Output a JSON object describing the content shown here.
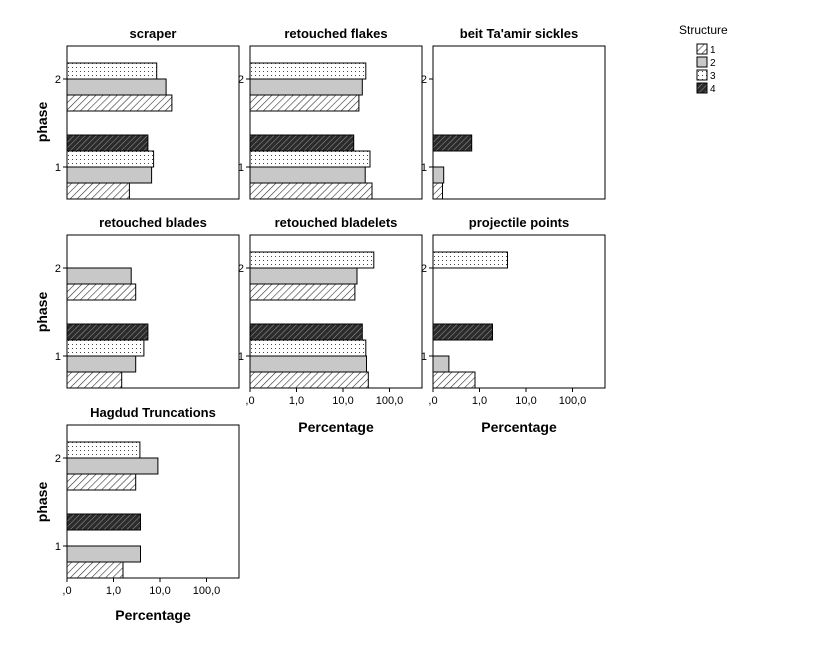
{
  "chart_data": {
    "type": "bar",
    "orientation": "horizontal",
    "x_scale": "log",
    "xlim": [
      0.1,
      500
    ],
    "x_ticks": [
      ",0",
      "1,0",
      "10,0",
      "100,0"
    ],
    "x_tick_values": [
      0.1,
      1,
      10,
      100
    ],
    "xlabel": "Percentage",
    "ylabel": "phase",
    "y_categories": [
      "1",
      "2"
    ],
    "legend": {
      "title": "Structure",
      "position": "top-right",
      "entries": [
        {
          "label": "1",
          "fill": "#ffffff",
          "pattern": "hatch-diagonal"
        },
        {
          "label": "2",
          "fill": "#c8c8c8",
          "pattern": "solid"
        },
        {
          "label": "3",
          "fill": "#ffffff",
          "pattern": "dots"
        },
        {
          "label": "4",
          "fill": "#595959",
          "pattern": "hatch-dense"
        }
      ]
    },
    "panels": [
      {
        "title": "scraper",
        "phases": [
          {
            "phase": "1",
            "values": {
              "1": 2.2,
              "2": 6.6,
              "3": 7.3,
              "4": 5.5
            }
          },
          {
            "phase": "2",
            "values": {
              "1": 18,
              "2": 13.5,
              "3": 8.5,
              "4": null
            }
          }
        ]
      },
      {
        "title": "retouched flakes",
        "phases": [
          {
            "phase": "1",
            "values": {
              "1": 42,
              "2": 30,
              "3": 38,
              "4": 17
            }
          },
          {
            "phase": "2",
            "values": {
              "1": 22,
              "2": 26,
              "3": 31,
              "4": null
            }
          }
        ]
      },
      {
        "title": "beit Ta'amir sickles",
        "phases": [
          {
            "phase": "1",
            "values": {
              "1": 0.16,
              "2": 0.17,
              "3": null,
              "4": 0.68
            }
          },
          {
            "phase": "2",
            "values": {
              "1": null,
              "2": null,
              "3": null,
              "4": null
            }
          }
        ]
      },
      {
        "title": "retouched blades",
        "phases": [
          {
            "phase": "1",
            "values": {
              "1": 1.5,
              "2": 3,
              "3": 4.5,
              "4": 5.5
            }
          },
          {
            "phase": "2",
            "values": {
              "1": 3,
              "2": 2.4,
              "3": null,
              "4": null
            }
          }
        ]
      },
      {
        "title": "retouched bladelets",
        "phases": [
          {
            "phase": "1",
            "values": {
              "1": 35,
              "2": 32,
              "3": 31,
              "4": 26
            }
          },
          {
            "phase": "2",
            "values": {
              "1": 18,
              "2": 20,
              "3": 46,
              "4": null
            }
          }
        ]
      },
      {
        "title": "projectile points",
        "phases": [
          {
            "phase": "1",
            "values": {
              "1": 0.8,
              "2": 0.22,
              "3": null,
              "4": 1.9
            }
          },
          {
            "phase": "2",
            "values": {
              "1": null,
              "2": null,
              "3": 4,
              "4": null
            }
          }
        ]
      },
      {
        "title": "Hagdud Truncations",
        "phases": [
          {
            "phase": "1",
            "values": {
              "1": 1.6,
              "2": 3.8,
              "3": null,
              "4": 3.8
            }
          },
          {
            "phase": "2",
            "values": {
              "1": 3,
              "2": 9,
              "3": 3.7,
              "4": null
            }
          }
        ]
      }
    ]
  }
}
